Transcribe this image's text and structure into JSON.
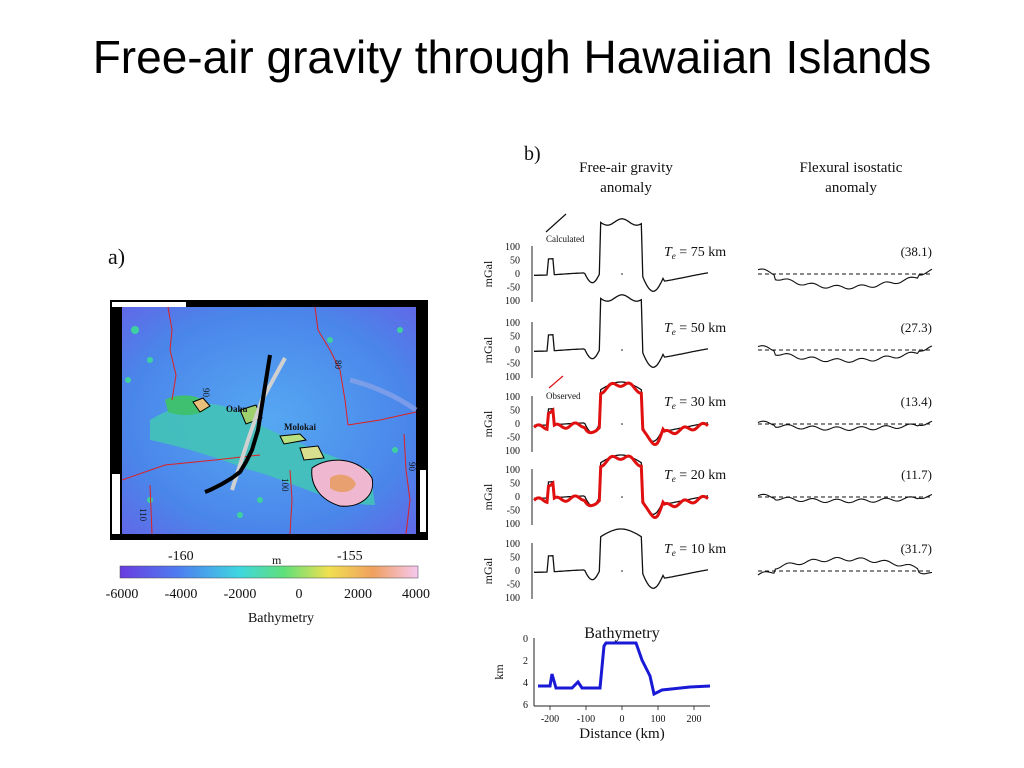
{
  "slide": {
    "title": "Free-air gravity through Hawaiian Islands"
  },
  "panel_a": {
    "label": "a)",
    "map_labels": [
      "Oahu",
      "Molokai"
    ],
    "contour_labels": [
      "80",
      "90",
      "100",
      "110",
      "90"
    ],
    "lon_ticks": [
      "-160",
      "-155"
    ],
    "unit": "m",
    "colorbar_ticks": [
      "-6000",
      "-4000",
      "-2000",
      "0",
      "2000",
      "4000"
    ],
    "colorbar_title": "Bathymetry",
    "colors": {
      "deep": "#6a4fe0",
      "mid": "#4fa0f0",
      "shelf": "#3ec8b0",
      "land": "#e8c07a",
      "peak": "#f0b0e0",
      "contour": "#e02020"
    }
  },
  "panel_b": {
    "label": "b)",
    "col_free_air": [
      "Free-air gravity",
      "anomaly"
    ],
    "col_flexural": [
      "Flexural isostatic",
      "anomaly"
    ],
    "legend_calculated": "Calculated",
    "legend_observed": "Observed",
    "y_ticks": [
      "100",
      "50",
      "0",
      "-50",
      "100"
    ],
    "y_unit": "mGal",
    "te_prefix": "T",
    "te_sub": "e",
    "rows": [
      {
        "te": " = 75 km",
        "rms": "(38.1)"
      },
      {
        "te": " = 50 km",
        "rms": "(27.3)"
      },
      {
        "te": " = 30 km",
        "rms": "(13.4)"
      },
      {
        "te": " = 20 km",
        "rms": "(11.7)"
      },
      {
        "te": " = 10 km",
        "rms": "(31.7)"
      }
    ],
    "bathymetry": {
      "title": "Bathymetry",
      "y_unit": "km",
      "y_ticks": [
        "0",
        "2",
        "4",
        "6"
      ],
      "x_ticks": [
        "-200",
        "-100",
        "0",
        "100",
        "200"
      ],
      "x_label": "Distance (km)"
    },
    "colors": {
      "calculated": "#111111",
      "observed": "#e01010",
      "bathymetry": "#1a1ad6"
    }
  }
}
